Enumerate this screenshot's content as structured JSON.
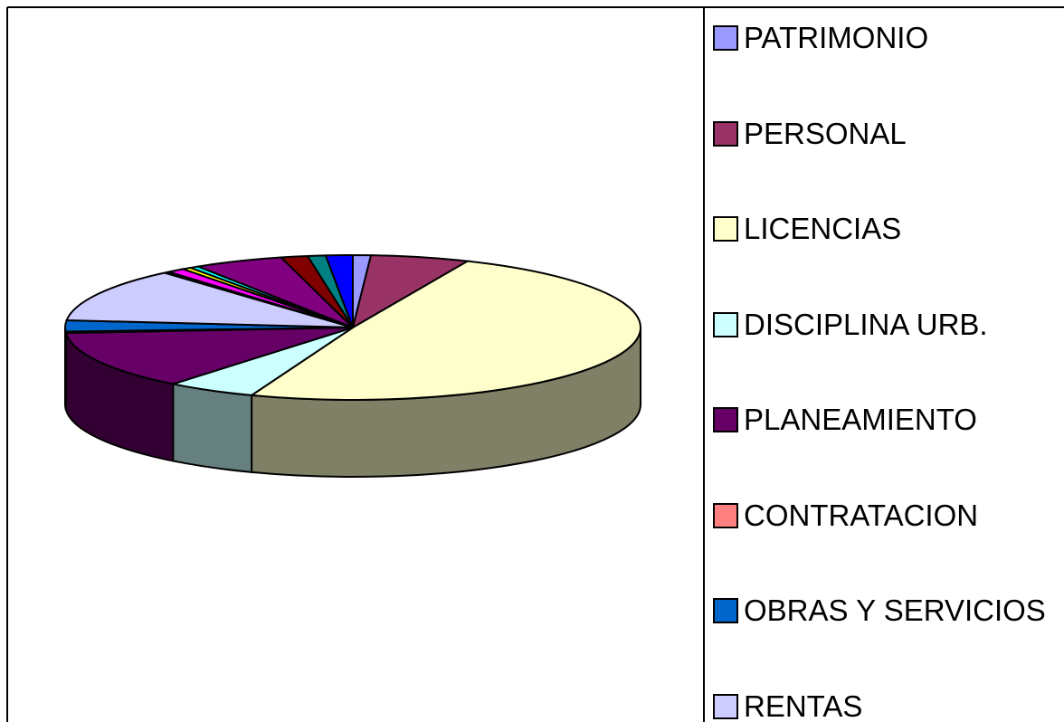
{
  "chart_data": {
    "type": "pie3d",
    "categories": [
      "PATRIMONIO",
      "PERSONAL",
      "LICENCIAS",
      "DISCIPLINA URB.",
      "PLANEAMIENTO",
      "CONTRATACION",
      "OBRAS Y SERVICIOS",
      "RENTAS",
      null,
      null,
      null,
      null,
      null,
      null,
      null,
      null
    ],
    "values": [
      1,
      5.5,
      49,
      5,
      13,
      0.3,
      2.5,
      12,
      0.3,
      1,
      0.5,
      0.5,
      5,
      1.5,
      1,
      1.5
    ],
    "colors": [
      "#9999ff",
      "#993366",
      "#ffffcc",
      "#ccffff",
      "#660066",
      "#ff8080",
      "#0066cc",
      "#ccccff",
      "#000080",
      "#ff00ff",
      "#ffff00",
      "#00ffff",
      "#800080",
      "#800000",
      "#008080",
      "#0000ff"
    ],
    "legend": "right"
  }
}
